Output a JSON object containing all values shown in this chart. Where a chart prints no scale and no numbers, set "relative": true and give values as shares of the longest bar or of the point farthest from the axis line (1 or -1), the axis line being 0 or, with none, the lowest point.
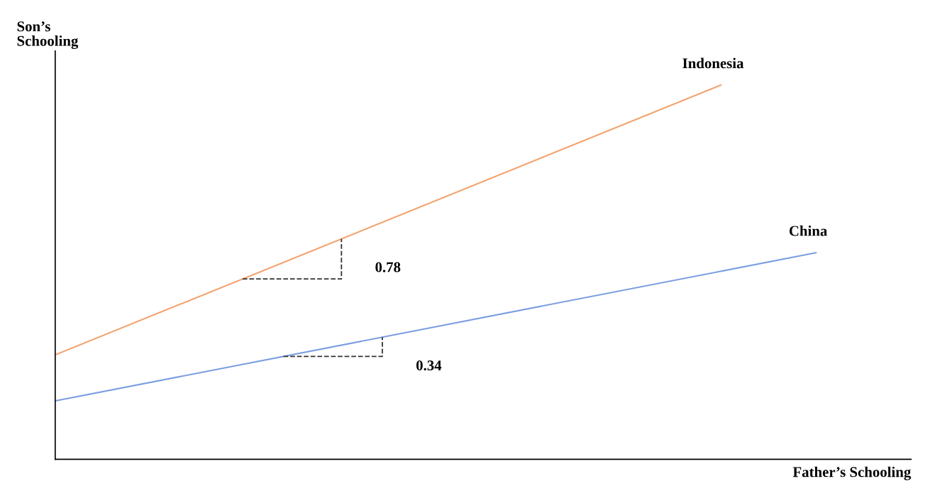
{
  "chart_data": {
    "type": "line",
    "relative": true,
    "xlabel": "Father’s Schooling",
    "ylabel": "Son’s\nSchooling",
    "legend": false,
    "marker": "none",
    "line_style": "solid",
    "categories": [
      null,
      null,
      null,
      null,
      null,
      null,
      null,
      null,
      null,
      null
    ],
    "series": [
      {
        "name": "Indonesia",
        "color": "#f4a26e",
        "values": [
          0.279,
          null,
          null,
          null,
          null,
          null,
          null,
          1,
          null,
          null
        ]
      },
      {
        "name": "China",
        "color": "#7b9ee0",
        "values": [
          0.156,
          null,
          null,
          null,
          null,
          null,
          null,
          null,
          0.552,
          null
        ]
      }
    ],
    "annotations": [
      "0.78",
      "0.34"
    ]
  }
}
